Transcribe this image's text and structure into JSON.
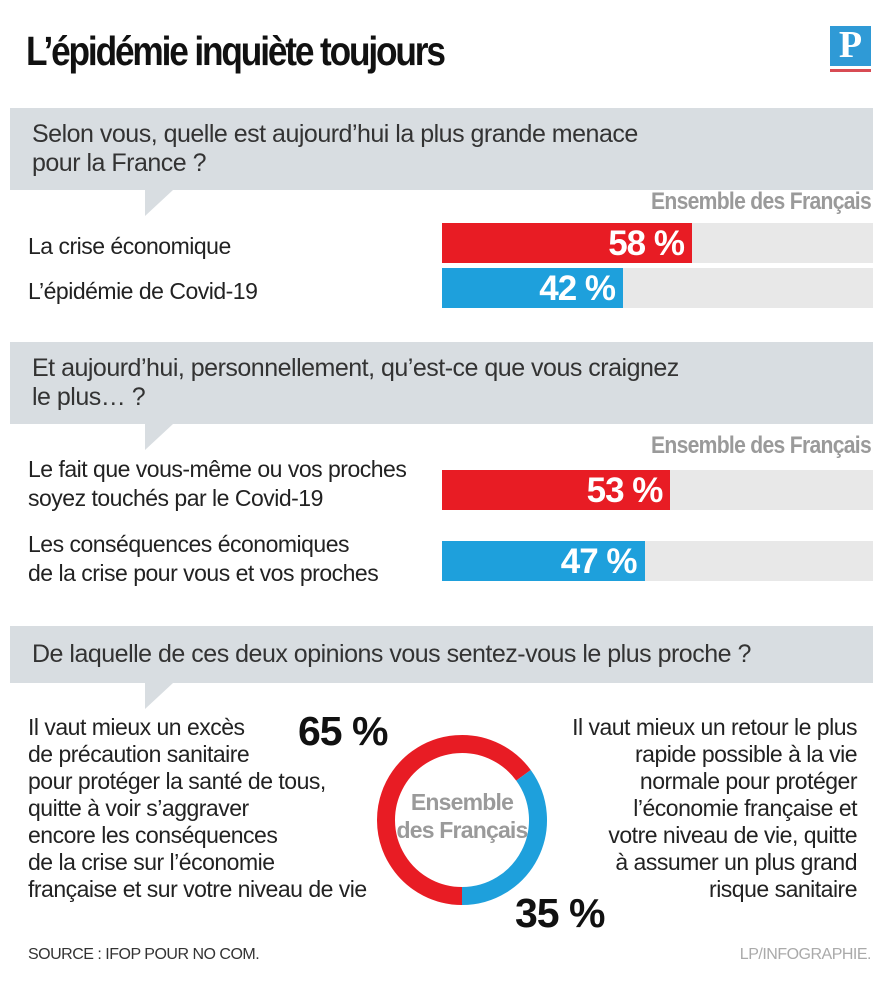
{
  "header": {
    "title": "L’épidémie inquiète toujours",
    "logo_letter": "P"
  },
  "colors": {
    "red": "#e81c24",
    "blue": "#1ea0dc",
    "track": "#e8e8e8",
    "question_bg": "#d8dde1",
    "label_grey": "#9a9a9a"
  },
  "chart_data": [
    {
      "type": "bar",
      "title": "Selon vous, quelle est aujourd’hui la plus grande menace pour la France ?",
      "series_label": "Ensemble des Français",
      "categories": [
        "La crise économique",
        "L’épidémie de Covid-19"
      ],
      "values": [
        58,
        42
      ],
      "value_labels": [
        "58 %",
        "42 %"
      ],
      "unit": "%",
      "xlim": [
        0,
        100
      ]
    },
    {
      "type": "bar",
      "title": "Et aujourd’hui, personnellement, qu’est-ce que vous craignez le plus… ?",
      "series_label": "Ensemble des Français",
      "categories": [
        "Le fait que vous-même ou vos proches soyez touchés par le Covid-19",
        "Les conséquences économiques de la crise pour vous et vos proches"
      ],
      "values": [
        53,
        47
      ],
      "value_labels": [
        "53 %",
        "47 %"
      ],
      "unit": "%",
      "xlim": [
        0,
        100
      ]
    },
    {
      "type": "pie",
      "title": "De laquelle de ces deux opinions vous sentez-vous le plus proche ?",
      "center_label": "Ensemble des Français",
      "categories": [
        "Il vaut mieux un excès de précaution sanitaire pour protéger la santé de tous, quitte à voir s’aggraver encore les conséquences de la crise sur l’économie française et sur votre niveau de vie",
        "Il vaut mieux un retour le plus rapide possible à la vie normale pour protéger l’économie française et votre niveau de vie, quitte à assumer un plus grand risque sanitaire"
      ],
      "values": [
        65,
        35
      ],
      "value_labels": [
        "65 %",
        "35 %"
      ],
      "unit": "%"
    }
  ],
  "q1": {
    "lines": [
      "Selon vous, quelle est aujourd’hui la plus grande menace",
      "pour la France ?"
    ],
    "series_label": "Ensemble des Français",
    "rows": [
      {
        "label": "La crise économique",
        "value": 58,
        "text": "58 %",
        "color": "#e81c24"
      },
      {
        "label": "L’épidémie de Covid-19",
        "value": 42,
        "text": "42 %",
        "color": "#1ea0dc"
      }
    ]
  },
  "q2": {
    "lines": [
      "Et aujourd’hui, personnellement, qu’est-ce que vous craignez",
      "le plus… ?"
    ],
    "series_label": "Ensemble des Français",
    "rows": [
      {
        "label1": "Le fait que vous-même ou vos proches",
        "label2": "soyez touchés par le Covid-19",
        "value": 53,
        "text": "53 %",
        "color": "#e81c24"
      },
      {
        "label1": "Les conséquences économiques",
        "label2": "de la crise pour vous et vos proches",
        "value": 47,
        "text": "47 %",
        "color": "#1ea0dc"
      }
    ]
  },
  "q3": {
    "question": "De laquelle de ces deux opinions vous sentez-vous le plus proche ?",
    "center_line1": "Ensemble",
    "center_line2": "des Français",
    "left_pct": "65 %",
    "right_pct": "35 %",
    "left_value": 65,
    "right_value": 35,
    "left_lines": [
      "Il vaut mieux un excès",
      "de précaution sanitaire",
      "pour protéger la santé de tous,",
      "quitte à voir s’aggraver",
      "encore les conséquences",
      "de la crise sur l’économie",
      "française et sur votre niveau de vie"
    ],
    "right_lines": [
      "Il vaut mieux un retour le plus",
      "rapide possible à la vie",
      "normale pour protéger",
      "l’économie française et",
      "votre niveau de vie, quitte",
      "à assumer un plus grand",
      "risque sanitaire"
    ]
  },
  "footer": {
    "source": "SOURCE : IFOP POUR NO COM.",
    "credit": "LP/INFOGRAPHIE."
  }
}
